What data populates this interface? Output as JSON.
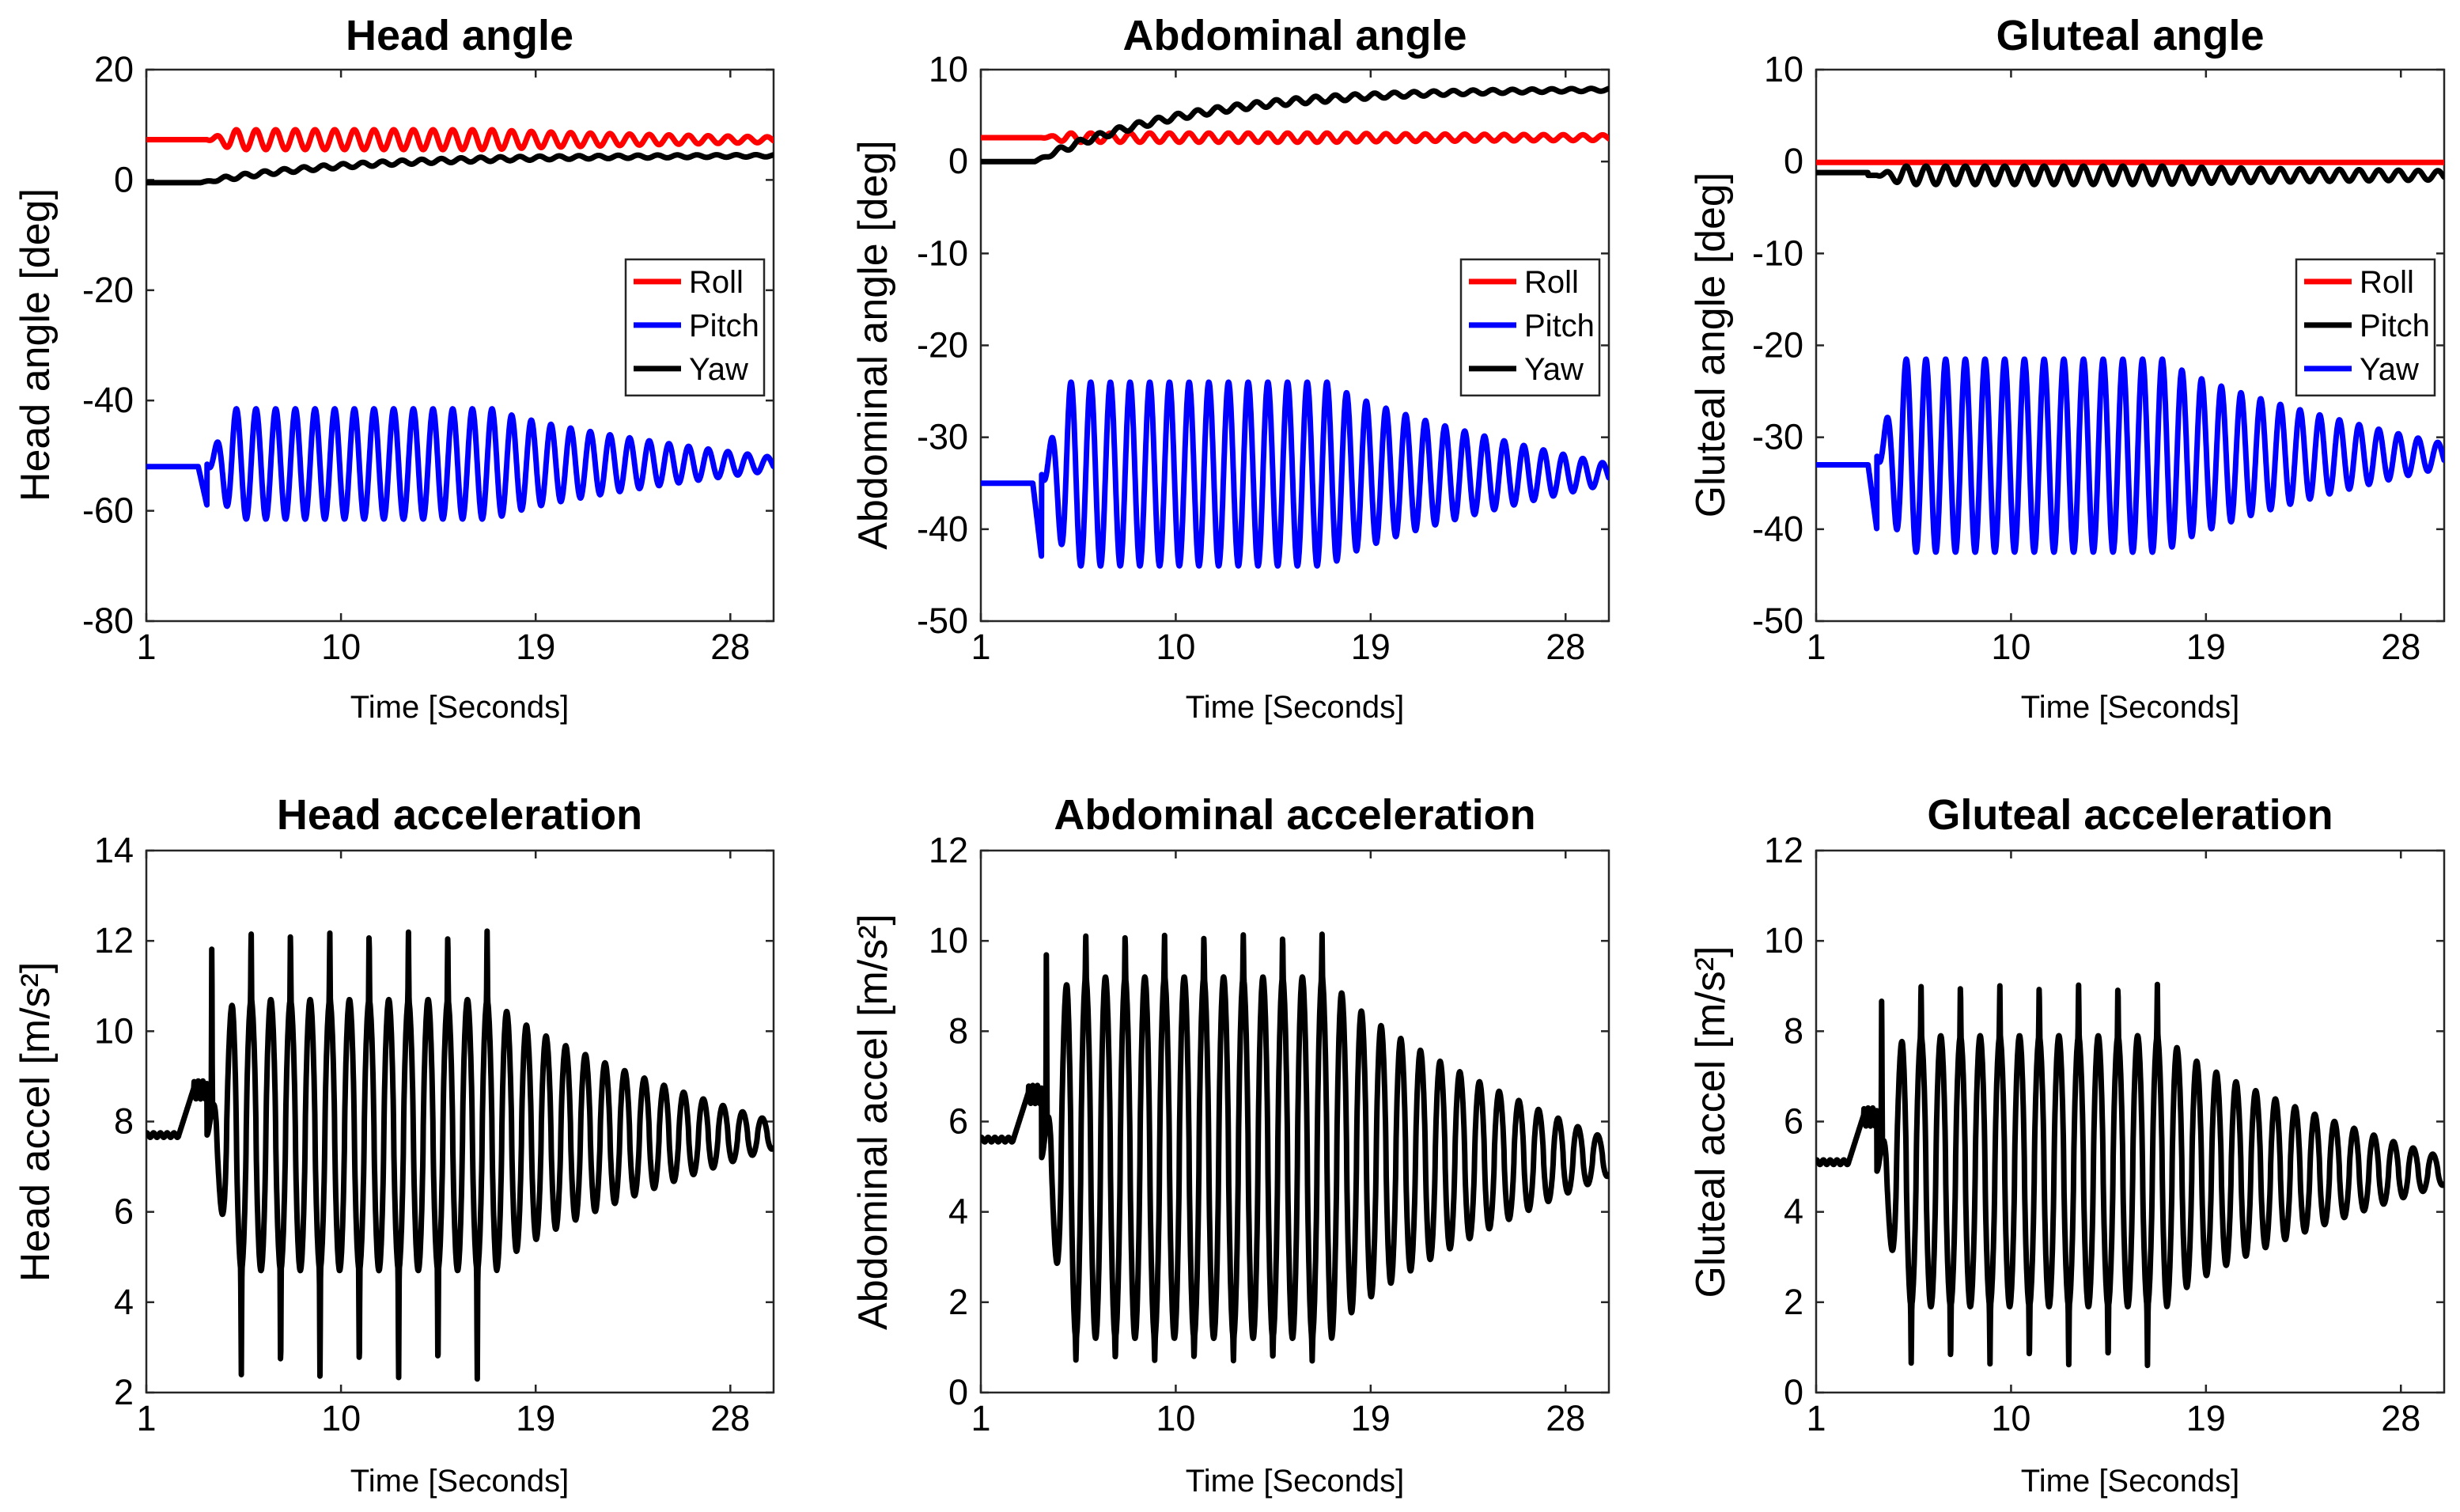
{
  "colors": {
    "red": "#ff0000",
    "blue": "#0000ff",
    "black": "#000000"
  },
  "chart_data": [
    {
      "id": "head-angle",
      "type": "line",
      "title": "Head angle",
      "xlabel": "Time [Seconds]",
      "ylabel": "Head angle [deg]",
      "xlim": [
        1,
        30
      ],
      "ylim": [
        -80,
        20
      ],
      "xticks": [
        1,
        10,
        19,
        28
      ],
      "yticks": [
        -80,
        -60,
        -40,
        -20,
        0,
        20
      ],
      "legend": {
        "position": "right-middle"
      },
      "series": [
        {
          "name": "Roll",
          "color": "#ff0000",
          "baseline": 7.3,
          "start": 3.8,
          "amp0": 1.8,
          "amp1": 0.5,
          "freq": 1.1
        },
        {
          "name": "Pitch",
          "color": "#0000ff",
          "baseline": -52,
          "center": -51.5,
          "dip": -59,
          "start": 3.8,
          "amp0": 10,
          "amp1": 1.2,
          "freq": 1.1
        },
        {
          "name": "Yaw",
          "color": "#000000",
          "baseline": -0.5,
          "final": 4.5,
          "start": 3.5,
          "amp0": 0.8,
          "amp1": 0.4,
          "freq": 1.1
        }
      ]
    },
    {
      "id": "abdominal-angle",
      "type": "line",
      "title": "Abdominal angle",
      "xlabel": "Time [Seconds]",
      "ylabel": "Abdominal angle [deg]",
      "xlim": [
        1,
        30
      ],
      "ylim": [
        -50,
        10
      ],
      "xticks": [
        1,
        10,
        19,
        28
      ],
      "yticks": [
        -50,
        -40,
        -30,
        -20,
        -10,
        0,
        10
      ],
      "legend": {
        "position": "right-middle"
      },
      "series": [
        {
          "name": "Roll",
          "color": "#ff0000",
          "baseline": 2.6,
          "start": 3.8,
          "amp0": 0.5,
          "amp1": 0.3,
          "freq": 1.1
        },
        {
          "name": "Pitch",
          "color": "#0000ff",
          "baseline": -35,
          "center": -34,
          "dip": -43,
          "start": 3.8,
          "amp0": 10,
          "amp1": 1.1,
          "freq": 1.1
        },
        {
          "name": "Yaw",
          "color": "#000000",
          "baseline": 0,
          "final": 8,
          "start": 3.5,
          "amp0": 0.7,
          "amp1": 0.3,
          "freq": 1.1
        }
      ]
    },
    {
      "id": "gluteal-angle",
      "type": "line",
      "title": "Gluteal angle",
      "xlabel": "Time [Seconds]",
      "ylabel": "Gluteal angle [deg]",
      "xlim": [
        1,
        30
      ],
      "ylim": [
        -50,
        10
      ],
      "xticks": [
        1,
        10,
        19,
        28
      ],
      "yticks": [
        -50,
        -40,
        -30,
        -20,
        -10,
        0,
        10
      ],
      "legend": {
        "position": "right-middle"
      },
      "series": [
        {
          "name": "Roll",
          "color": "#ff0000",
          "baseline": -0.1,
          "start": 3.8,
          "amp0": 0,
          "amp1": 0,
          "freq": 1.1
        },
        {
          "name": "Pitch",
          "color": "#000000",
          "baseline": -1.2,
          "center": -1.5,
          "start": 3.8,
          "amp0": 1,
          "amp1": 0.5,
          "freq": 1.1
        },
        {
          "name": "Yaw",
          "color": "#0000ff",
          "baseline": -33,
          "center": -32,
          "dip": -40,
          "start": 3.8,
          "amp0": 10.5,
          "amp1": 1.3,
          "freq": 1.1
        }
      ]
    },
    {
      "id": "head-accel",
      "type": "line",
      "title": "Head acceleration",
      "xlabel": "Time [Seconds]",
      "ylabel": "Head accel [m/s²]",
      "xlim": [
        1,
        30
      ],
      "ylim": [
        2,
        14
      ],
      "xticks": [
        1,
        10,
        19,
        28
      ],
      "yticks": [
        2,
        4,
        6,
        8,
        10,
        12,
        14
      ],
      "series": [
        {
          "name": "Accel",
          "color": "#000000",
          "baseline": 7.7,
          "center": 7.7,
          "start": 3.8,
          "amp0": 3.0,
          "amp1": 0.3,
          "peak_high": 12.3,
          "peak_low": 2.3,
          "freq": 1.1
        }
      ]
    },
    {
      "id": "abdominal-accel",
      "type": "line",
      "title": "Abdominal acceleration",
      "xlabel": "Time [Seconds]",
      "ylabel": "Abdominal accel [m/s²]",
      "xlim": [
        1,
        30
      ],
      "ylim": [
        0,
        12
      ],
      "xticks": [
        1,
        10,
        19,
        28
      ],
      "yticks": [
        0,
        2,
        4,
        6,
        8,
        10,
        12
      ],
      "series": [
        {
          "name": "Accel",
          "color": "#000000",
          "baseline": 5.6,
          "center": 5.2,
          "start": 3.8,
          "amp0": 4.0,
          "amp1": 0.4,
          "peak_high": 10.2,
          "peak_low": 0.7,
          "freq": 1.1
        }
      ]
    },
    {
      "id": "gluteal-accel",
      "type": "line",
      "title": "Gluteal acceleration",
      "xlabel": "Time [Seconds]",
      "ylabel": "Gluteal accel [m/s²]",
      "xlim": [
        1,
        30
      ],
      "ylim": [
        0,
        12
      ],
      "xticks": [
        1,
        10,
        19,
        28
      ],
      "yticks": [
        0,
        2,
        4,
        6,
        8,
        10,
        12
      ],
      "series": [
        {
          "name": "Accel",
          "color": "#000000",
          "baseline": 5.1,
          "center": 4.9,
          "start": 3.8,
          "amp0": 3.0,
          "amp1": 0.3,
          "peak_high": 9.1,
          "peak_low": 0.6,
          "freq": 1.1
        }
      ]
    }
  ]
}
